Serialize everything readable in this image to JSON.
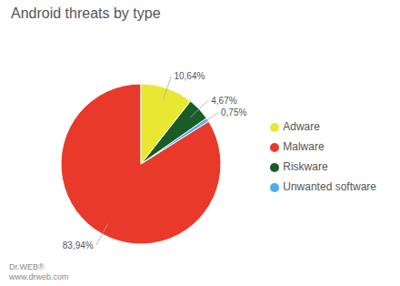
{
  "chart_data": {
    "type": "pie",
    "title": "Android threats by type",
    "categories": [
      "Malware",
      "Unwanted software",
      "Riskware",
      "Adware"
    ],
    "values": [
      83.94,
      0.75,
      4.67,
      10.64
    ],
    "value_labels": [
      "83,94%",
      "0,75%",
      "4,67%",
      "10,64%"
    ],
    "colors": [
      "#e8392a",
      "#4aadee",
      "#1a5c28",
      "#e8e832"
    ],
    "data_labels": true,
    "legend": "right",
    "annotations": [
      "Dr.WEB®",
      "www.drweb.com"
    ]
  }
}
